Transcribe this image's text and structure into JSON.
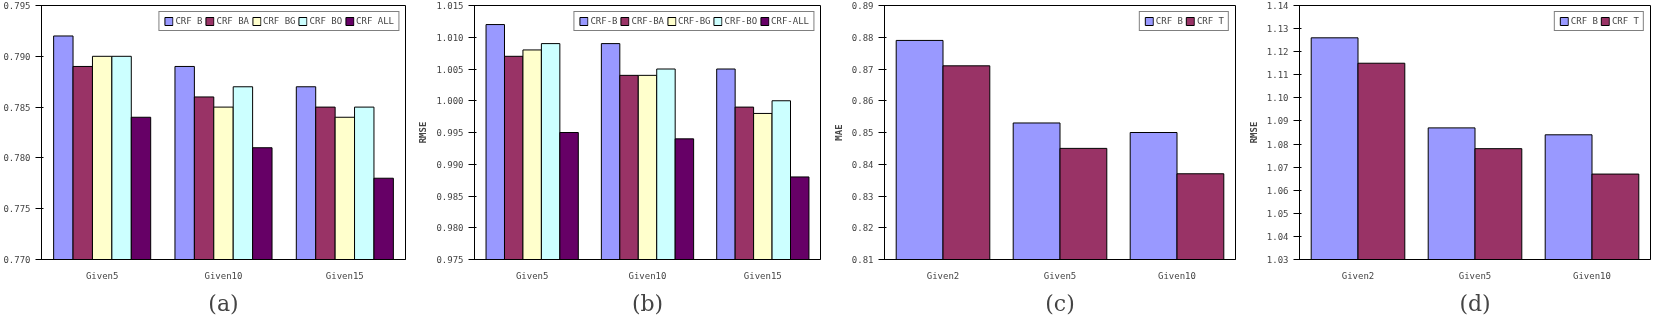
{
  "chart_data": [
    {
      "type": "bar",
      "annotations": [
        "(a)"
      ],
      "categories": [
        "Given5",
        "Given10",
        "Given15"
      ],
      "series": [
        {
          "name": "CRF B",
          "color": "#9999ff",
          "values": [
            0.792,
            0.789,
            0.787
          ]
        },
        {
          "name": "CRF BA",
          "color": "#993366",
          "values": [
            0.789,
            0.786,
            0.785
          ]
        },
        {
          "name": "CRF BG",
          "color": "#ffffcc",
          "values": [
            0.79,
            0.785,
            0.784
          ]
        },
        {
          "name": "CRF BO",
          "color": "#ccffff",
          "values": [
            0.79,
            0.787,
            0.785
          ]
        },
        {
          "name": "CRF ALL",
          "color": "#660066",
          "values": [
            0.784,
            0.781,
            0.778
          ]
        }
      ],
      "ylim": [
        0.77,
        0.795
      ],
      "yticks": [
        {
          "value": 0.77,
          "label": "0.770"
        },
        {
          "value": 0.775,
          "label": "0.775"
        },
        {
          "value": 0.78,
          "label": "0.780"
        },
        {
          "value": 0.785,
          "label": "0.785"
        },
        {
          "value": 0.79,
          "label": "0.790"
        },
        {
          "value": 0.795,
          "label": "0.795"
        }
      ],
      "legend": "top right",
      "grid": false
    },
    {
      "type": "bar",
      "ylabel": "RMSE",
      "annotations": [
        "(b)"
      ],
      "categories": [
        "Given5",
        "Given10",
        "Given15"
      ],
      "series": [
        {
          "name": "CRF-B",
          "color": "#9999ff",
          "values": [
            1.012,
            1.009,
            1.005
          ]
        },
        {
          "name": "CRF-BA",
          "color": "#993366",
          "values": [
            1.007,
            1.004,
            0.999
          ]
        },
        {
          "name": "CRF-BG",
          "color": "#ffffcc",
          "values": [
            1.008,
            1.004,
            0.998
          ]
        },
        {
          "name": "CRF-BO",
          "color": "#ccffff",
          "values": [
            1.009,
            1.005,
            1.0
          ]
        },
        {
          "name": "CRF-ALL",
          "color": "#660066",
          "values": [
            0.995,
            0.994,
            0.988
          ]
        }
      ],
      "ylim": [
        0.975,
        1.015
      ],
      "yticks": [
        {
          "value": 0.975,
          "label": "0.975"
        },
        {
          "value": 0.98,
          "label": "0.980"
        },
        {
          "value": 0.985,
          "label": "0.985"
        },
        {
          "value": 0.99,
          "label": "0.990"
        },
        {
          "value": 0.995,
          "label": "0.995"
        },
        {
          "value": 1.0,
          "label": "1.000"
        },
        {
          "value": 1.005,
          "label": "1.005"
        },
        {
          "value": 1.01,
          "label": "1.010"
        },
        {
          "value": 1.015,
          "label": "1.015"
        }
      ],
      "legend": "top right",
      "grid": false
    },
    {
      "type": "bar",
      "ylabel": "MAE",
      "annotations": [
        "(c)"
      ],
      "categories": [
        "Given2",
        "Given5",
        "Given10"
      ],
      "series": [
        {
          "name": "CRF B",
          "color": "#9999ff",
          "values": [
            0.879,
            0.853,
            0.85
          ]
        },
        {
          "name": "CRF T",
          "color": "#993366",
          "values": [
            0.871,
            0.845,
            0.837
          ]
        }
      ],
      "ylim": [
        0.81,
        0.89
      ],
      "yticks": [
        0.81,
        0.82,
        0.83,
        0.84,
        0.85,
        0.86,
        0.87,
        0.88,
        0.89
      ],
      "legend": "top right",
      "grid": false
    },
    {
      "type": "bar",
      "ylabel": "RMSE",
      "annotations": [
        "(d)"
      ],
      "categories": [
        "Given2",
        "Given5",
        "Given10"
      ],
      "series": [
        {
          "name": "CRF B",
          "color": "#9999ff",
          "values": [
            1.126,
            1.087,
            1.084
          ]
        },
        {
          "name": "CRF T",
          "color": "#993366",
          "values": [
            1.115,
            1.078,
            1.067
          ]
        }
      ],
      "ylim": [
        1.03,
        1.14
      ],
      "yticks": [
        {
          "value": 1.03,
          "label": "1.03"
        },
        {
          "value": 1.04,
          "label": "1.04"
        },
        {
          "value": 1.05,
          "label": "1.05"
        },
        {
          "value": 1.06,
          "label": "1.06"
        },
        {
          "value": 1.07,
          "label": "1.07"
        },
        {
          "value": 1.08,
          "label": "1.08"
        },
        {
          "value": 1.09,
          "label": "1.09"
        },
        {
          "value": 1.1,
          "label": "1.10"
        },
        {
          "value": 1.11,
          "label": "1.11"
        },
        {
          "value": 1.12,
          "label": "1.12"
        },
        {
          "value": 1.13,
          "label": "1.13"
        },
        {
          "value": 1.14,
          "label": "1.14"
        }
      ],
      "legend": "top right",
      "grid": false
    }
  ]
}
